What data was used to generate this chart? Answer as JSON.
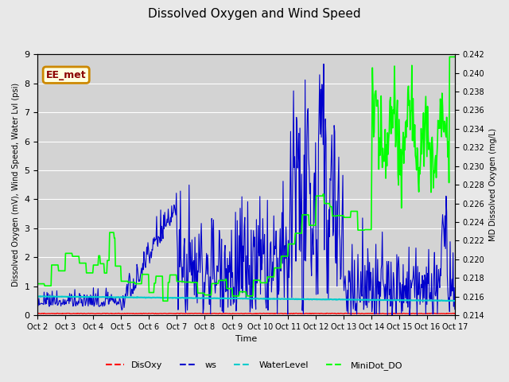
{
  "title": "Dissolved Oxygen and Wind Speed",
  "xlabel": "Time",
  "ylabel_left": "Dissolved Oxygen (mV), Wind Speed, Water Lvl (psi)",
  "ylabel_right": "MD Dissolved Oxygen (mg/L)",
  "ylim_left": [
    0.0,
    9.0
  ],
  "ylim_right": [
    0.214,
    0.242
  ],
  "background_color": "#e8e8e8",
  "plot_bg_color": "#d3d3d3",
  "annotation_text": "EE_met",
  "annotation_color": "#cc8800",
  "series": {
    "DisOxy": {
      "color": "#ff0000",
      "linewidth": 1.0
    },
    "ws": {
      "color": "#0000cc",
      "linewidth": 0.8
    },
    "WaterLevel": {
      "color": "#00cccc",
      "linewidth": 1.5
    },
    "MiniDot_DO": {
      "color": "#00ff00",
      "linewidth": 1.2
    }
  },
  "x_tick_labels": [
    "Oct 2",
    "Oct 3",
    "Oct 4",
    "Oct 5",
    "Oct 6",
    "Oct 7",
    "Oct 8",
    "Oct 9",
    "Oct 10",
    "Oct 11",
    "Oct 12",
    "Oct 13",
    "Oct 14",
    "Oct 15",
    "Oct 16",
    "Oct 17"
  ],
  "yticks_left": [
    0.0,
    1.0,
    2.0,
    3.0,
    4.0,
    5.0,
    6.0,
    7.0,
    8.0,
    9.0
  ],
  "yticks_right": [
    0.214,
    0.216,
    0.218,
    0.22,
    0.222,
    0.224,
    0.226,
    0.228,
    0.23,
    0.232,
    0.234,
    0.236,
    0.238,
    0.24,
    0.242
  ],
  "legend_items": [
    {
      "label": "DisOxy",
      "color": "#ff0000"
    },
    {
      "label": "ws",
      "color": "#0000cc"
    },
    {
      "label": "WaterLevel",
      "color": "#00cccc"
    },
    {
      "label": "MiniDot_DO",
      "color": "#00ff00"
    }
  ]
}
